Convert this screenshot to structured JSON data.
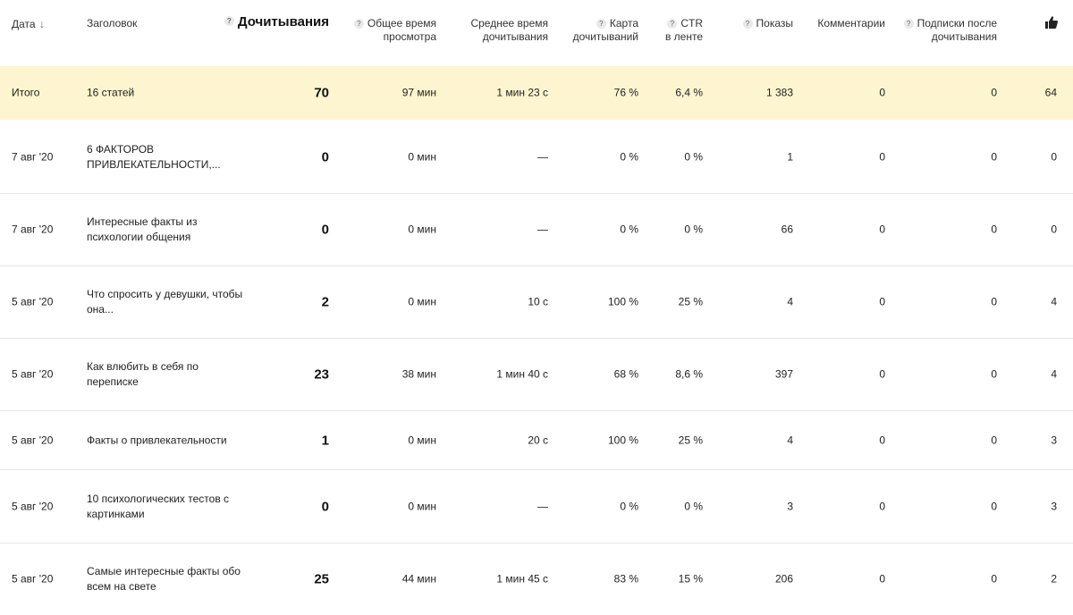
{
  "header": {
    "date": "Дата",
    "title": "Заголовок",
    "reads": "Дочитывания",
    "total_time": [
      "Общее время",
      "просмотра"
    ],
    "avg_time": [
      "Среднее время",
      "дочитывания"
    ],
    "read_map": [
      "Карта",
      "дочитываний"
    ],
    "ctr": [
      "CTR",
      "в ленте"
    ],
    "shows": "Показы",
    "comments": "Комментарии",
    "subs": [
      "Подписки после",
      "дочитывания"
    ],
    "q": "?",
    "sort_arrow": "↓",
    "like_icon": "thumbs-up-icon"
  },
  "total": {
    "date": "Итого",
    "title": "16 статей",
    "reads": "70",
    "total_time": "97 мин",
    "avg_time": "1 мин 23 с",
    "read_map": "76 %",
    "ctr": "6,4 %",
    "shows": "1 383",
    "comments": "0",
    "subs": "0",
    "likes": "64"
  },
  "rows": [
    {
      "date": "7 авг '20",
      "title": "6 ФАКТОРОВ ПРИВЛЕКАТЕЛЬНОСТИ,...",
      "reads": "0",
      "total_time": "0 мин",
      "avg_time": "—",
      "read_map": "0 %",
      "ctr": "0 %",
      "shows": "1",
      "comments": "0",
      "subs": "0",
      "likes": "0"
    },
    {
      "date": "7 авг '20",
      "title": "Интересные факты из психологии общения",
      "reads": "0",
      "total_time": "0 мин",
      "avg_time": "—",
      "read_map": "0 %",
      "ctr": "0 %",
      "shows": "66",
      "comments": "0",
      "subs": "0",
      "likes": "0"
    },
    {
      "date": "5 авг '20",
      "title": "Что спросить у девушки, чтобы она...",
      "reads": "2",
      "total_time": "0 мин",
      "avg_time": "10 с",
      "read_map": "100 %",
      "ctr": "25 %",
      "shows": "4",
      "comments": "0",
      "subs": "0",
      "likes": "4"
    },
    {
      "date": "5 авг '20",
      "title": "Как влюбить в себя по переписке",
      "reads": "23",
      "total_time": "38 мин",
      "avg_time": "1 мин 40 с",
      "read_map": "68 %",
      "ctr": "8,6 %",
      "shows": "397",
      "comments": "0",
      "subs": "0",
      "likes": "4"
    },
    {
      "date": "5 авг '20",
      "title": "Факты о привлекательности",
      "reads": "1",
      "total_time": "0 мин",
      "avg_time": "20 с",
      "read_map": "100 %",
      "ctr": "25 %",
      "shows": "4",
      "comments": "0",
      "subs": "0",
      "likes": "3"
    },
    {
      "date": "5 авг '20",
      "title": "10 психологических тестов с картинками",
      "reads": "0",
      "total_time": "0 мин",
      "avg_time": "—",
      "read_map": "0 %",
      "ctr": "0 %",
      "shows": "3",
      "comments": "0",
      "subs": "0",
      "likes": "3"
    },
    {
      "date": "5 авг '20",
      "title": "Самые интересные факты обо всем на свете",
      "reads": "25",
      "total_time": "44 мин",
      "avg_time": "1 мин 45 с",
      "read_map": "83 %",
      "ctr": "15 %",
      "shows": "206",
      "comments": "0",
      "subs": "0",
      "likes": "2"
    }
  ]
}
